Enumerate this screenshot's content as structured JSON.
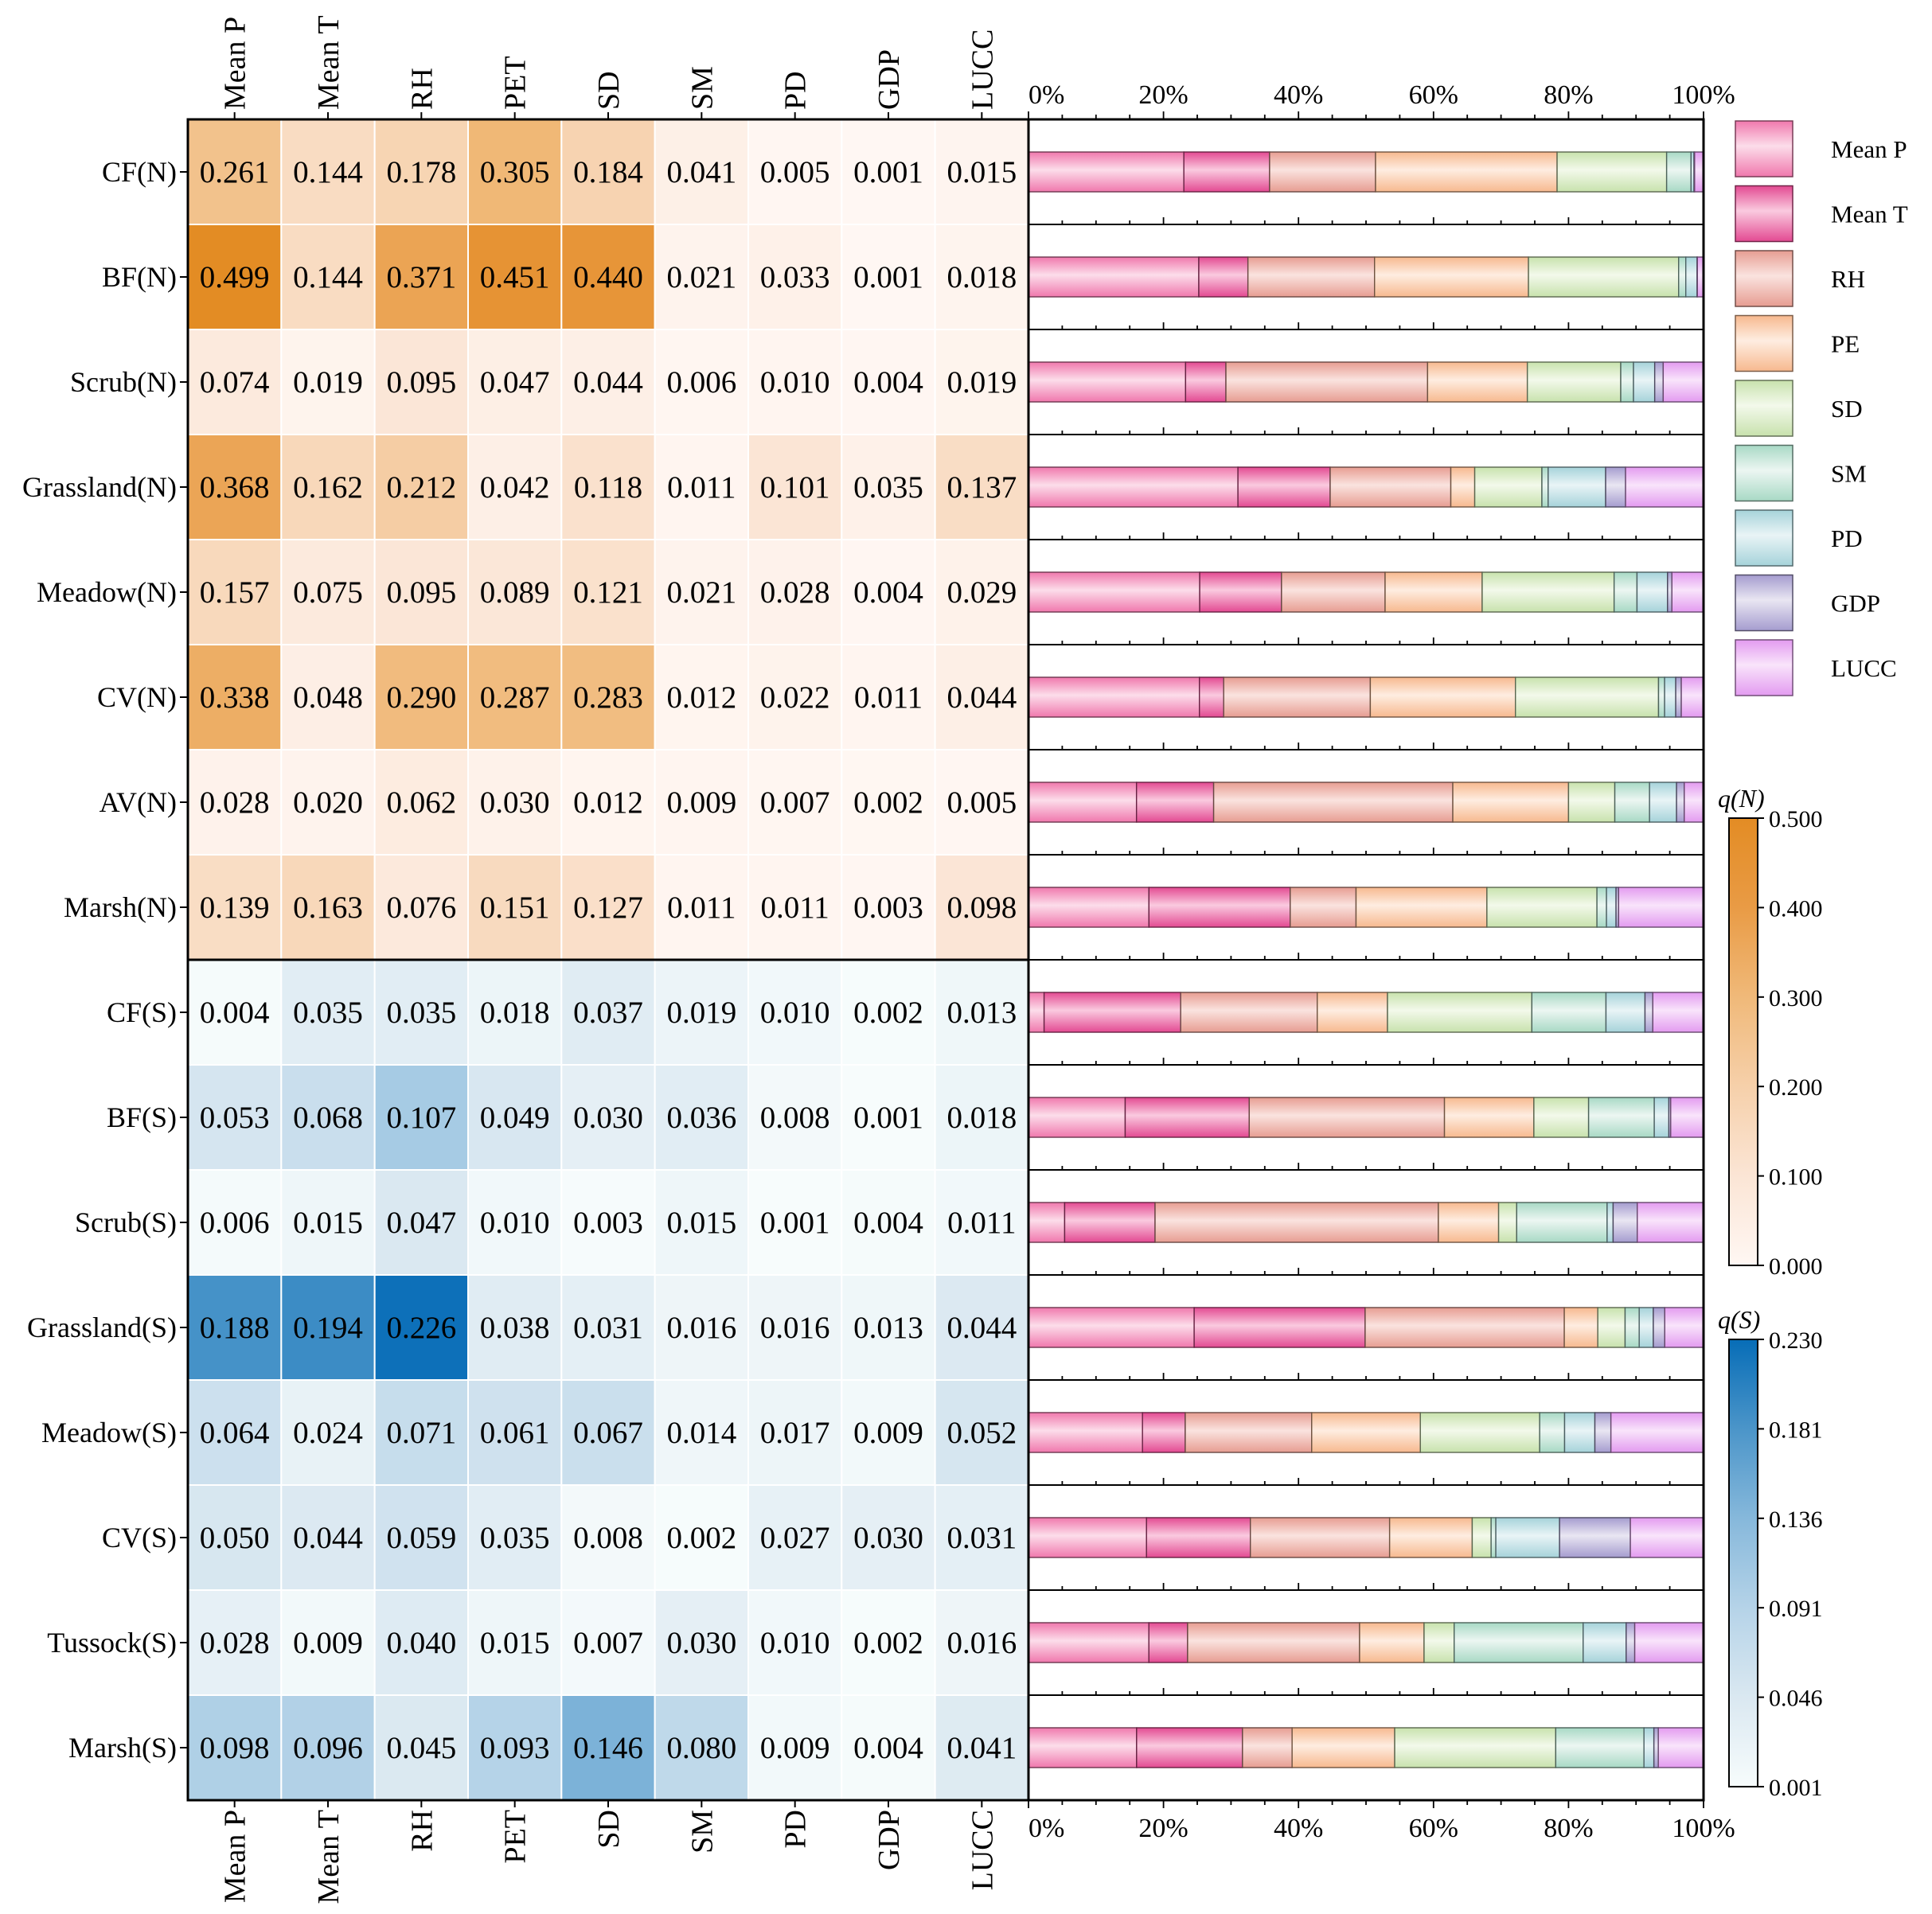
{
  "chart_data": {
    "type": "heatmap",
    "columns": [
      "Mean P",
      "Mean T",
      "RH",
      "PET",
      "SD",
      "SM",
      "PD",
      "GDP",
      "LUCC"
    ],
    "north": {
      "rows": [
        "CF(N)",
        "BF(N)",
        "Scrub(N)",
        "Grassland(N)",
        "Meadow(N)",
        "CV(N)",
        "AV(N)",
        "Marsh(N)"
      ],
      "values": [
        [
          0.261,
          0.144,
          0.178,
          0.305,
          0.184,
          0.041,
          0.005,
          0.001,
          0.015
        ],
        [
          0.499,
          0.144,
          0.371,
          0.451,
          0.44,
          0.021,
          0.033,
          0.001,
          0.018
        ],
        [
          0.074,
          0.019,
          0.095,
          0.047,
          0.044,
          0.006,
          0.01,
          0.004,
          0.019
        ],
        [
          0.368,
          0.162,
          0.212,
          0.042,
          0.118,
          0.011,
          0.101,
          0.035,
          0.137
        ],
        [
          0.157,
          0.075,
          0.095,
          0.089,
          0.121,
          0.021,
          0.028,
          0.004,
          0.029
        ],
        [
          0.338,
          0.048,
          0.29,
          0.287,
          0.283,
          0.012,
          0.022,
          0.011,
          0.044
        ],
        [
          0.028,
          0.02,
          0.062,
          0.03,
          0.012,
          0.009,
          0.007,
          0.002,
          0.005
        ],
        [
          0.139,
          0.163,
          0.076,
          0.151,
          0.127,
          0.011,
          0.011,
          0.003,
          0.098
        ]
      ],
      "labels": [
        [
          "0.261",
          "0.144",
          "0.178",
          "0.305",
          "0.184",
          "0.041",
          "0.005",
          "0.001",
          "0.015"
        ],
        [
          "0.499",
          "0.144",
          "0.371",
          "0.451",
          "0.440",
          "0.021",
          "0.033",
          "0.001",
          "0.018"
        ],
        [
          "0.074",
          "0.019",
          "0.095",
          "0.047",
          "0.044",
          "0.006",
          "0.010",
          "0.004",
          "0.019"
        ],
        [
          "0.368",
          "0.162",
          "0.212",
          "0.042",
          "0.118",
          "0.011",
          "0.101",
          "0.035",
          "0.137"
        ],
        [
          "0.157",
          "0.075",
          "0.095",
          "0.089",
          "0.121",
          "0.021",
          "0.028",
          "0.004",
          "0.029"
        ],
        [
          "0.338",
          "0.048",
          "0.290",
          "0.287",
          "0.283",
          "0.012",
          "0.022",
          "0.011",
          "0.044"
        ],
        [
          "0.028",
          "0.020",
          "0.062",
          "0.030",
          "0.012",
          "0.009",
          "0.007",
          "0.002",
          "0.005"
        ],
        [
          "0.139",
          "0.163",
          "0.076",
          "0.151",
          "0.127",
          "0.011",
          "0.011",
          "0.003",
          "0.098"
        ]
      ]
    },
    "south": {
      "rows": [
        "CF(S)",
        "BF(S)",
        "Scrub(S)",
        "Grassland(S)",
        "Meadow(S)",
        "CV(S)",
        "Tussock(S)",
        "Marsh(S)"
      ],
      "values": [
        [
          0.004,
          0.035,
          0.035,
          0.018,
          0.037,
          0.019,
          0.01,
          0.002,
          0.013
        ],
        [
          0.053,
          0.068,
          0.107,
          0.049,
          0.03,
          0.036,
          0.008,
          0.001,
          0.018
        ],
        [
          0.006,
          0.015,
          0.047,
          0.01,
          0.003,
          0.015,
          0.001,
          0.004,
          0.011
        ],
        [
          0.188,
          0.194,
          0.226,
          0.038,
          0.031,
          0.016,
          0.016,
          0.013,
          0.044
        ],
        [
          0.064,
          0.024,
          0.071,
          0.061,
          0.067,
          0.014,
          0.017,
          0.009,
          0.052
        ],
        [
          0.05,
          0.044,
          0.059,
          0.035,
          0.008,
          0.002,
          0.027,
          0.03,
          0.031
        ],
        [
          0.028,
          0.009,
          0.04,
          0.015,
          0.007,
          0.03,
          0.01,
          0.002,
          0.016
        ],
        [
          0.098,
          0.096,
          0.045,
          0.093,
          0.146,
          0.08,
          0.009,
          0.004,
          0.041
        ]
      ],
      "labels": [
        [
          "0.004",
          "0.035",
          "0.035",
          "0.018",
          "0.037",
          "0.019",
          "0.010",
          "0.002",
          "0.013"
        ],
        [
          "0.053",
          "0.068",
          "0.107",
          "0.049",
          "0.030",
          "0.036",
          "0.008",
          "0.001",
          "0.018"
        ],
        [
          "0.006",
          "0.015",
          "0.047",
          "0.010",
          "0.003",
          "0.015",
          "0.001",
          "0.004",
          "0.011"
        ],
        [
          "0.188",
          "0.194",
          "0.226",
          "0.038",
          "0.031",
          "0.016",
          "0.016",
          "0.013",
          "0.044"
        ],
        [
          "0.064",
          "0.024",
          "0.071",
          "0.061",
          "0.067",
          "0.014",
          "0.017",
          "0.009",
          "0.052"
        ],
        [
          "0.050",
          "0.044",
          "0.059",
          "0.035",
          "0.008",
          "0.002",
          "0.027",
          "0.030",
          "0.031"
        ],
        [
          "0.028",
          "0.009",
          "0.040",
          "0.015",
          "0.007",
          "0.030",
          "0.010",
          "0.002",
          "0.016"
        ],
        [
          "0.098",
          "0.096",
          "0.045",
          "0.093",
          "0.146",
          "0.080",
          "0.009",
          "0.004",
          "0.041"
        ]
      ]
    },
    "stacked_bar": {
      "type": "stacked-bar-100",
      "xticks": [
        "0%",
        "20%",
        "40%",
        "60%",
        "80%",
        "100%"
      ],
      "series_order": [
        "Mean P",
        "Mean T",
        "RH",
        "PE",
        "SD",
        "SM",
        "PD",
        "GDP",
        "LUCC"
      ],
      "note": "each row's bar shows the nine q values of the same row normalized to 100%"
    },
    "legend": {
      "entries": [
        "Mean P",
        "Mean T",
        "RH",
        "PE",
        "SD",
        "SM",
        "PD",
        "GDP",
        "LUCC"
      ],
      "colors": [
        "#f8b3d0",
        "#f38ab7",
        "#f3c1b8",
        "#fcd8bc",
        "#e5f1d2",
        "#d4ece2",
        "#cfe7ea",
        "#cdc7e3",
        "#f2c2f6"
      ],
      "edges": [
        "#f078ad",
        "#e34a92",
        "#e79d92",
        "#f7b98f",
        "#c8e2ad",
        "#a8d9c5",
        "#a6d3da",
        "#a59ccf",
        "#e39bf0"
      ]
    },
    "colorbar_north": {
      "title": "q(N)",
      "ticks": [
        "0.000",
        "0.100",
        "0.200",
        "0.300",
        "0.400",
        "0.500"
      ],
      "range": [
        0.0,
        0.5
      ],
      "colors": [
        "#fff7f3",
        "#fbe5d5",
        "#f6d0aa",
        "#f0b979",
        "#e99b45",
        "#e38c24"
      ]
    },
    "colorbar_south": {
      "title": "q(S)",
      "ticks": [
        "0.001",
        "0.046",
        "0.091",
        "0.136",
        "0.181",
        "0.230"
      ],
      "range": [
        0.001,
        0.23
      ],
      "colors": [
        "#f7fcfc",
        "#dae8f1",
        "#b5d3e8",
        "#86b8db",
        "#4b95c9",
        "#076db7"
      ]
    }
  }
}
